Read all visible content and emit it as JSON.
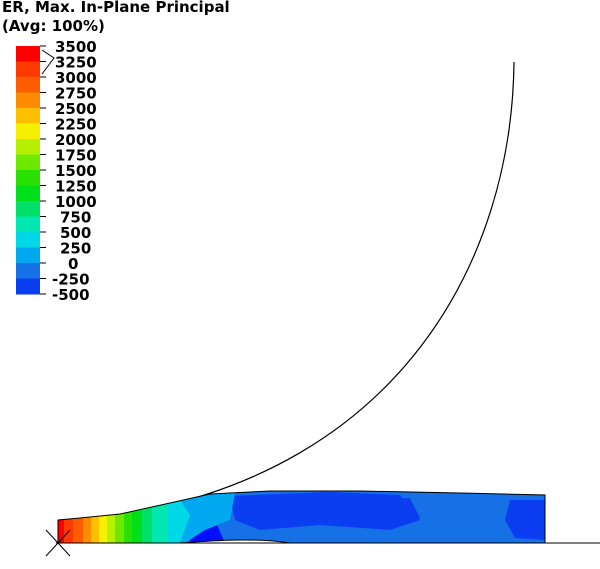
{
  "legend": {
    "title_line1": "ER, Max. In-Plane Principal",
    "title_line2": "(Avg: 100%)",
    "levels": [
      {
        "label": "3500",
        "color": "#ff0000"
      },
      {
        "label": "3250",
        "color": "#ff3a00"
      },
      {
        "label": "3000",
        "color": "#ff5c00"
      },
      {
        "label": "2750",
        "color": "#ff8c00"
      },
      {
        "label": "2500",
        "color": "#ffbf00"
      },
      {
        "label": "2250",
        "color": "#f4f000"
      },
      {
        "label": "2000",
        "color": "#b6f000"
      },
      {
        "label": "1750",
        "color": "#6fe800"
      },
      {
        "label": "1500",
        "color": "#2ae000"
      },
      {
        "label": "1250",
        "color": "#00e01a"
      },
      {
        "label": "1000",
        "color": "#00e069"
      },
      {
        "label": "750",
        "color": "#00e8b0"
      },
      {
        "label": "500",
        "color": "#00d8e8"
      },
      {
        "label": "250",
        "color": "#00a8f0"
      },
      {
        "label": "0",
        "color": "#1670e6"
      },
      {
        "label": "-250",
        "color": "#0a3ef0"
      },
      {
        "label": "-500",
        "color": "#0010ff"
      }
    ]
  },
  "colors": {
    "outline": "#000000",
    "background": "#ffffff"
  }
}
